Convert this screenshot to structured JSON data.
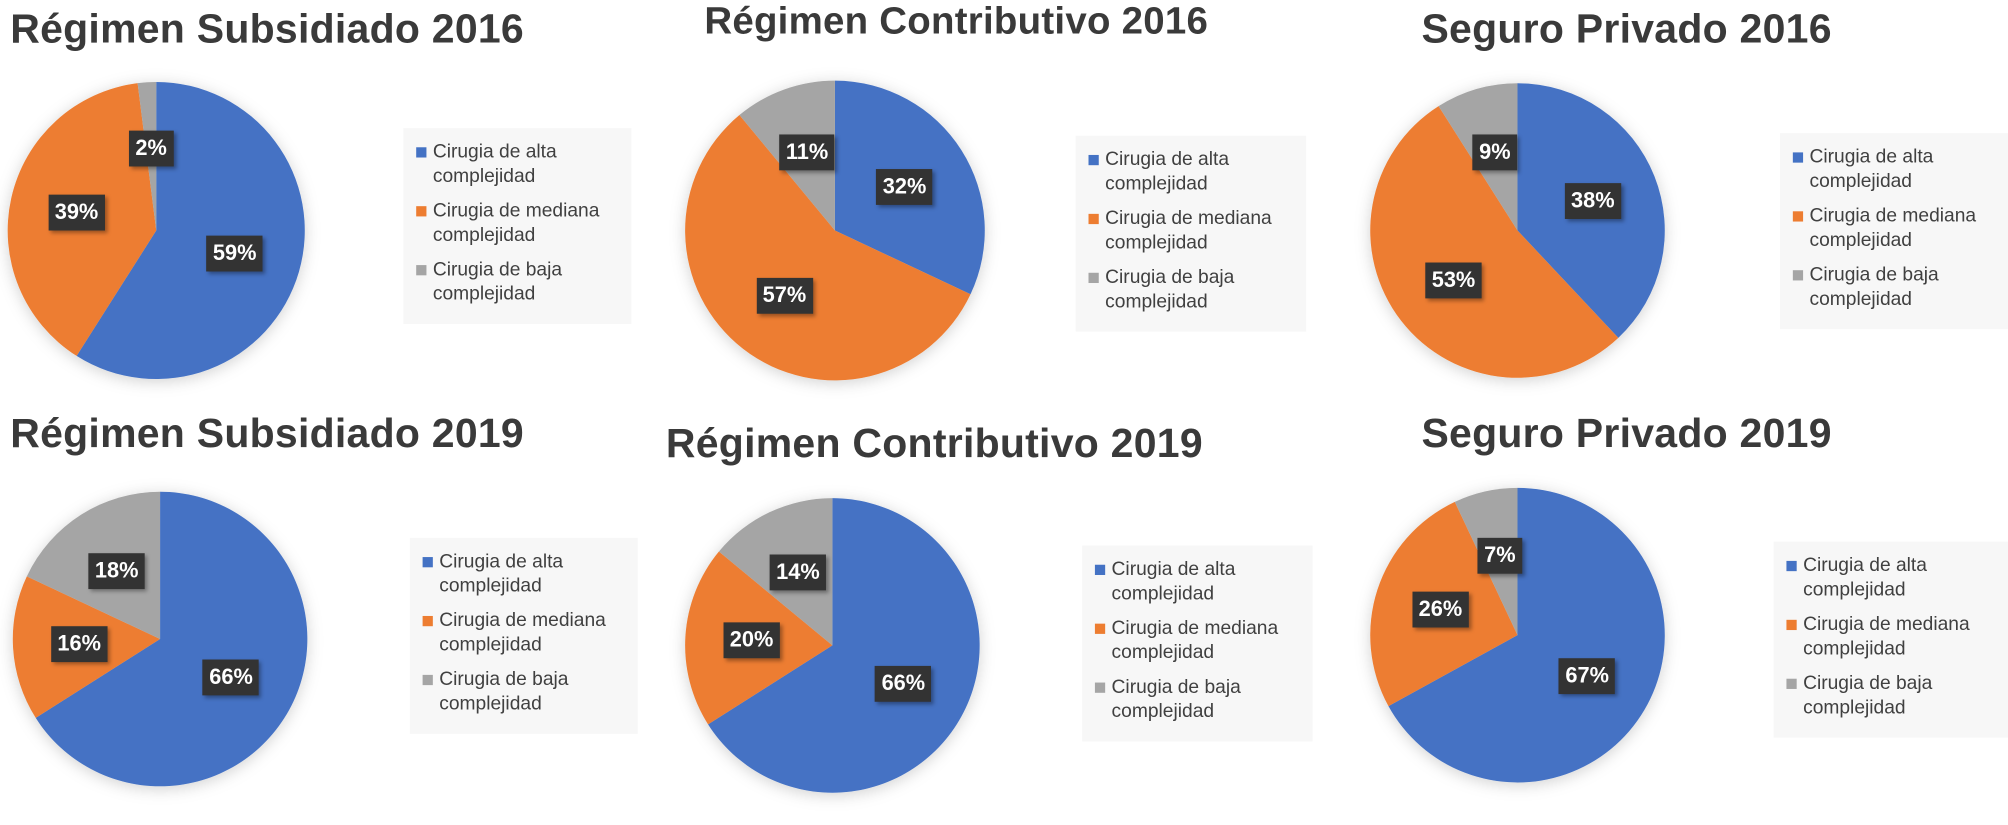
{
  "colors": {
    "alta": "#4472C4",
    "mediana": "#ED7D31",
    "baja": "#A5A5A5"
  },
  "chart_data": [
    {
      "type": "pie",
      "title": "Régimen Subsidiado 2016",
      "categories": [
        "Cirugia de alta complejidad",
        "Cirugia de mediana complejidad",
        "Cirugia de baja complejidad"
      ],
      "values": [
        59,
        39,
        2
      ],
      "labels": [
        "59%",
        "39%",
        "2%"
      ],
      "legend": "right"
    },
    {
      "type": "pie",
      "title": "Régimen Contributivo 2016",
      "categories": [
        "Cirugia de alta complejidad",
        "Cirugia de mediana complejidad",
        "Cirugia de baja complejidad"
      ],
      "values": [
        32,
        57,
        11
      ],
      "labels": [
        "32%",
        "57%",
        "11%"
      ],
      "legend": "right"
    },
    {
      "type": "pie",
      "title": "Seguro Privado 2016",
      "categories": [
        "Cirugia de alta complejidad",
        "Cirugia de mediana complejidad",
        "Cirugia de baja complejidad"
      ],
      "values": [
        38,
        53,
        9
      ],
      "labels": [
        "38%",
        "53%",
        "9%"
      ],
      "legend": "right"
    },
    {
      "type": "pie",
      "title": "Régimen Subsidiado 2019",
      "categories": [
        "Cirugia de alta complejidad",
        "Cirugia de mediana complejidad",
        "Cirugia de baja complejidad"
      ],
      "values": [
        66,
        16,
        18
      ],
      "labels": [
        "66%",
        "16%",
        "18%"
      ],
      "legend": "right"
    },
    {
      "type": "pie",
      "title": "Régimen Contributivo 2019",
      "categories": [
        "Cirugia de alta complejidad",
        "Cirugia de mediana complejidad",
        "Cirugia de baja complejidad"
      ],
      "values": [
        66,
        20,
        14
      ],
      "labels": [
        "66%",
        "20%",
        "14%"
      ],
      "legend": "right"
    },
    {
      "type": "pie",
      "title": "Seguro Privado 2019",
      "categories": [
        "Cirugia de alta complejidad",
        "Cirugia de mediana complejidad",
        "Cirugia de baja complejidad"
      ],
      "values": [
        67,
        26,
        7
      ],
      "labels": [
        "67%",
        "26%",
        "7%"
      ],
      "legend": "right"
    }
  ]
}
